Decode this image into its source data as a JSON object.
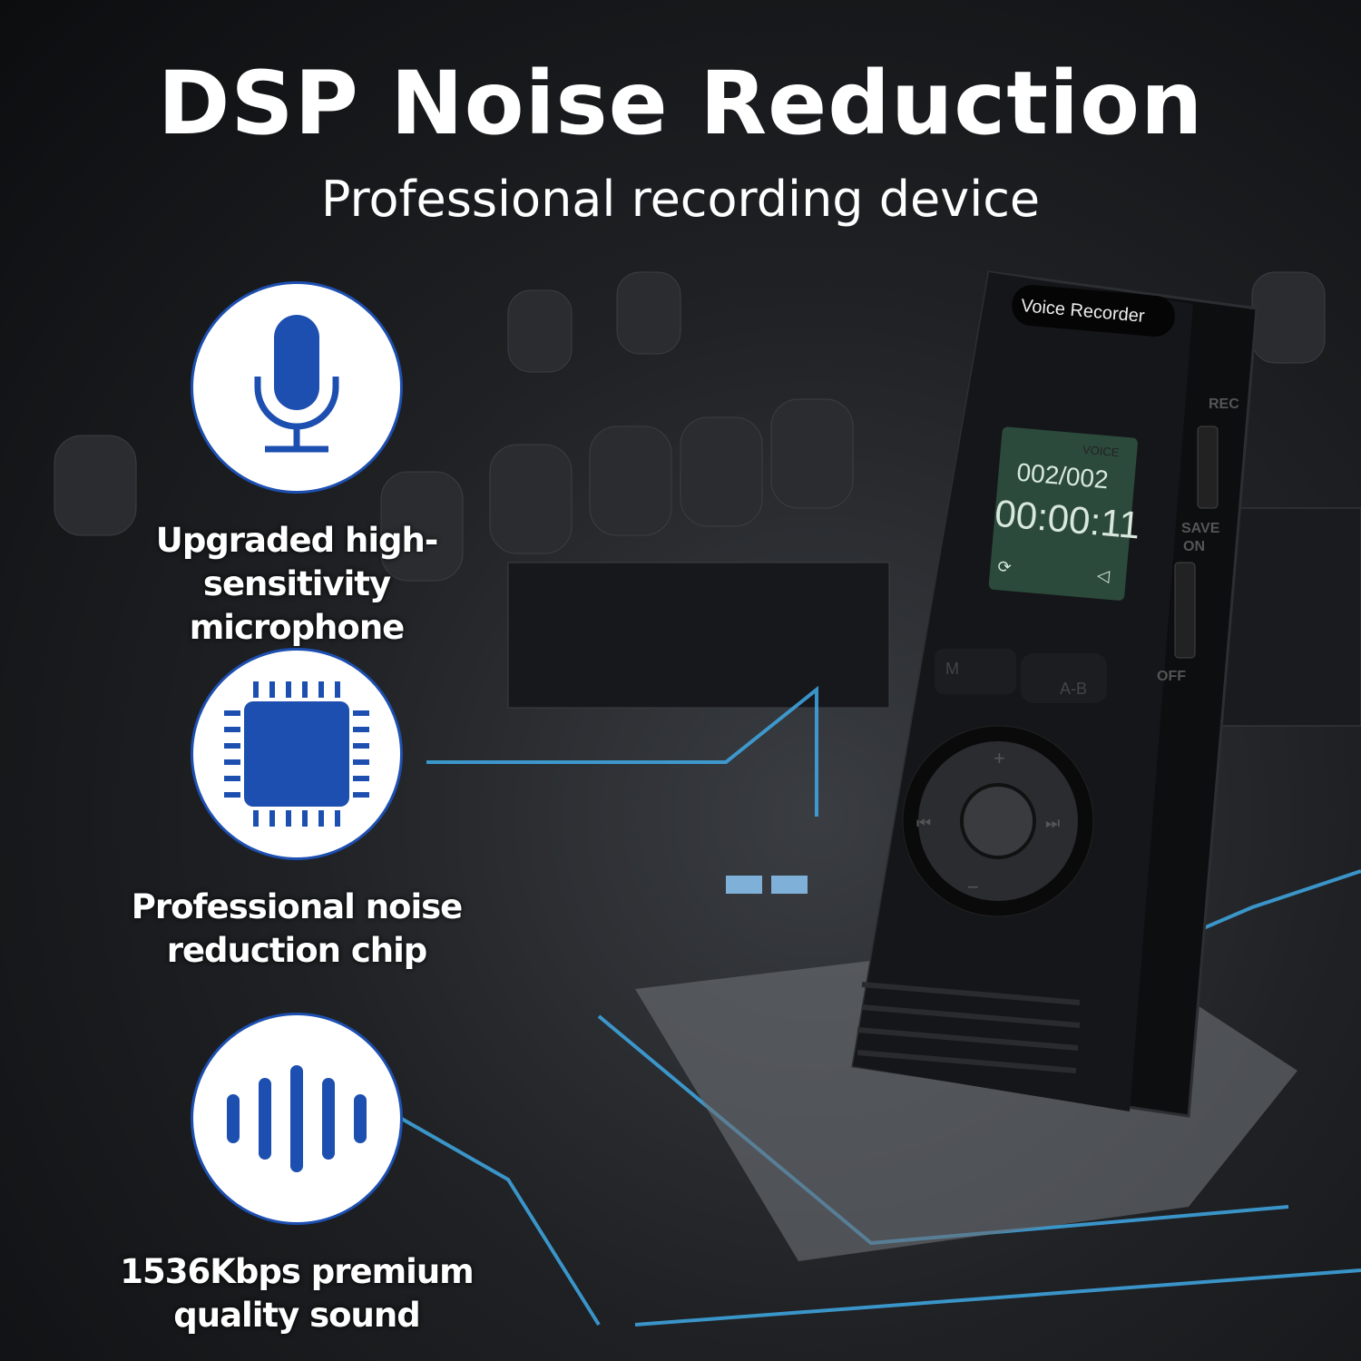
{
  "header": {
    "title": "DSP Noise Reduction",
    "subtitle": "Professional recording device"
  },
  "features": [
    {
      "icon": "microphone-icon",
      "line1": "Upgraded high-sensitivity",
      "line2": "microphone"
    },
    {
      "icon": "chip-icon",
      "line1": "Professional noise",
      "line2": "reduction chip"
    },
    {
      "icon": "sound-wave-icon",
      "line1": "1536Kbps premium",
      "line2": "quality sound"
    }
  ],
  "device": {
    "brand_label": "Voice Recorder",
    "lcd_mode": "VOICE",
    "lcd_track": "002/002",
    "lcd_time": "00:00:11",
    "switch_rec": "REC",
    "switch_save": "SAVE",
    "switch_on": "ON",
    "switch_off": "OFF",
    "button_m": "M",
    "button_ab": "A-B",
    "button_plus": "+",
    "button_minus": "−"
  },
  "colors": {
    "accent": "#1d4fb0",
    "glow": "#3fa9e6",
    "lcd": "#2c4a3c"
  }
}
